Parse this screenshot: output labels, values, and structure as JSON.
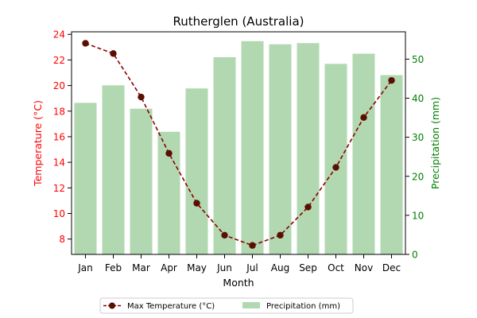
{
  "chart_data": {
    "type": "bar+line",
    "title": "Rutherglen (Australia)",
    "xlabel": "Month",
    "categories": [
      "Jan",
      "Feb",
      "Mar",
      "Apr",
      "May",
      "Jun",
      "Jul",
      "Aug",
      "Sep",
      "Oct",
      "Nov",
      "Dec"
    ],
    "y_left": {
      "label": "Temperature (°C)",
      "ylim": [
        6.8,
        24.2
      ],
      "ticks": [
        8,
        10,
        12,
        14,
        16,
        18,
        20,
        22,
        24
      ],
      "color": "#ff0000"
    },
    "y_right": {
      "label": "Precipitation (mm)",
      "ylim": [
        0,
        57
      ],
      "ticks": [
        0,
        10,
        20,
        30,
        40,
        50
      ],
      "color": "#008000"
    },
    "series": [
      {
        "name": "Max Temperature (°C)",
        "type": "line",
        "axis": "left",
        "color": "#8b0000",
        "marker_color": "#5a1000",
        "values": [
          23.3,
          22.5,
          19.1,
          14.7,
          10.8,
          8.3,
          7.5,
          8.3,
          10.5,
          13.6,
          17.5,
          20.4
        ]
      },
      {
        "name": "Precipitation (mm)",
        "type": "bar",
        "axis": "right",
        "color": "#b1d8b1",
        "values": [
          38.8,
          43.3,
          37.3,
          31.4,
          42.5,
          50.5,
          54.6,
          53.8,
          54.1,
          48.8,
          51.4,
          45.9
        ]
      }
    ],
    "legend": {
      "placement": "bottom-center",
      "ncol": 2
    }
  }
}
